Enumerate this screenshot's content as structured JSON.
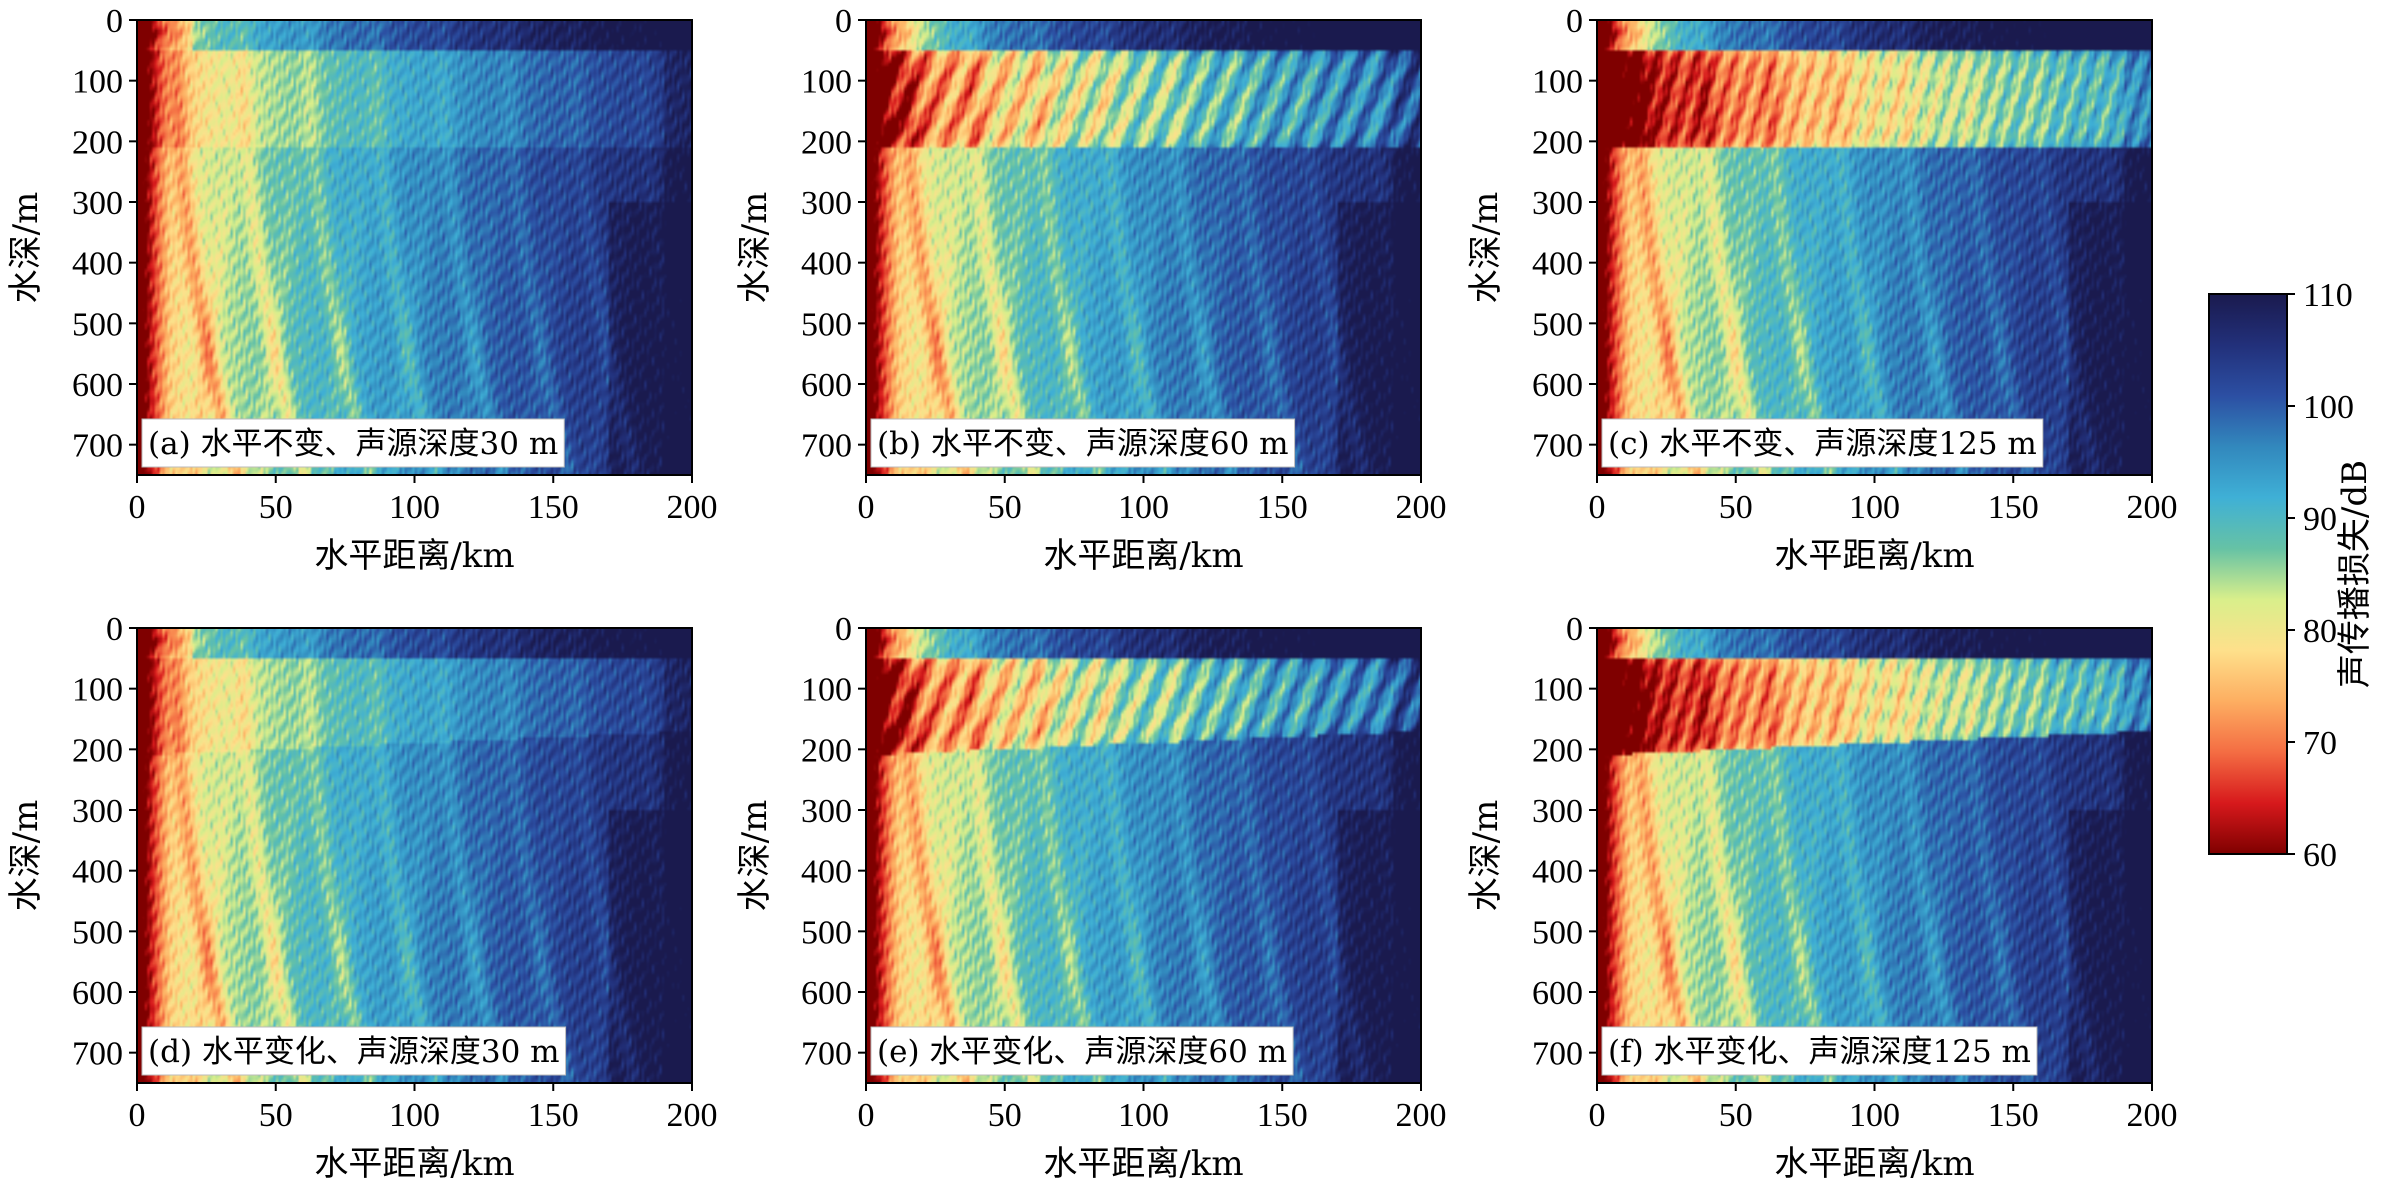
{
  "chart_data": {
    "type": "heatmap",
    "colorbar": {
      "label": "声传播损失/dB",
      "ticks": [
        60,
        70,
        80,
        90,
        100,
        110
      ],
      "range": [
        60,
        110
      ],
      "colormap": [
        "#7f0000",
        "#d7191c",
        "#f46d43",
        "#fdae61",
        "#fee08b",
        "#d9ef8b",
        "#66c2a5",
        "#3fb0d6",
        "#3288bd",
        "#2c4fa3",
        "#22307a",
        "#1a1a4e"
      ]
    },
    "panels": [
      {
        "label": "(a) 水平不变、声源深度30 m",
        "environment": "水平不变",
        "source_depth_m": 30
      },
      {
        "label": "(b) 水平不变、声源深度60 m",
        "environment": "水平不变",
        "source_depth_m": 60
      },
      {
        "label": "(c) 水平不变、声源深度125 m",
        "environment": "水平不变",
        "source_depth_m": 125
      },
      {
        "label": "(d) 水平变化、声源深度30 m",
        "environment": "水平变化",
        "source_depth_m": 30
      },
      {
        "label": "(e) 水平变化、声源深度60 m",
        "environment": "水平变化",
        "source_depth_m": 60
      },
      {
        "label": "(f) 水平变化、声源深度125 m",
        "environment": "水平变化",
        "source_depth_m": 125
      }
    ],
    "xlabel": "水平距离/km",
    "ylabel": "水深/m",
    "xlim": [
      0,
      200
    ],
    "ylim": [
      750,
      0
    ],
    "xticks": [
      0,
      50,
      100,
      150,
      200
    ],
    "yticks": [
      0,
      100,
      200,
      300,
      400,
      500,
      600,
      700
    ],
    "duct_depth_range_m": [
      50,
      210
    ]
  }
}
